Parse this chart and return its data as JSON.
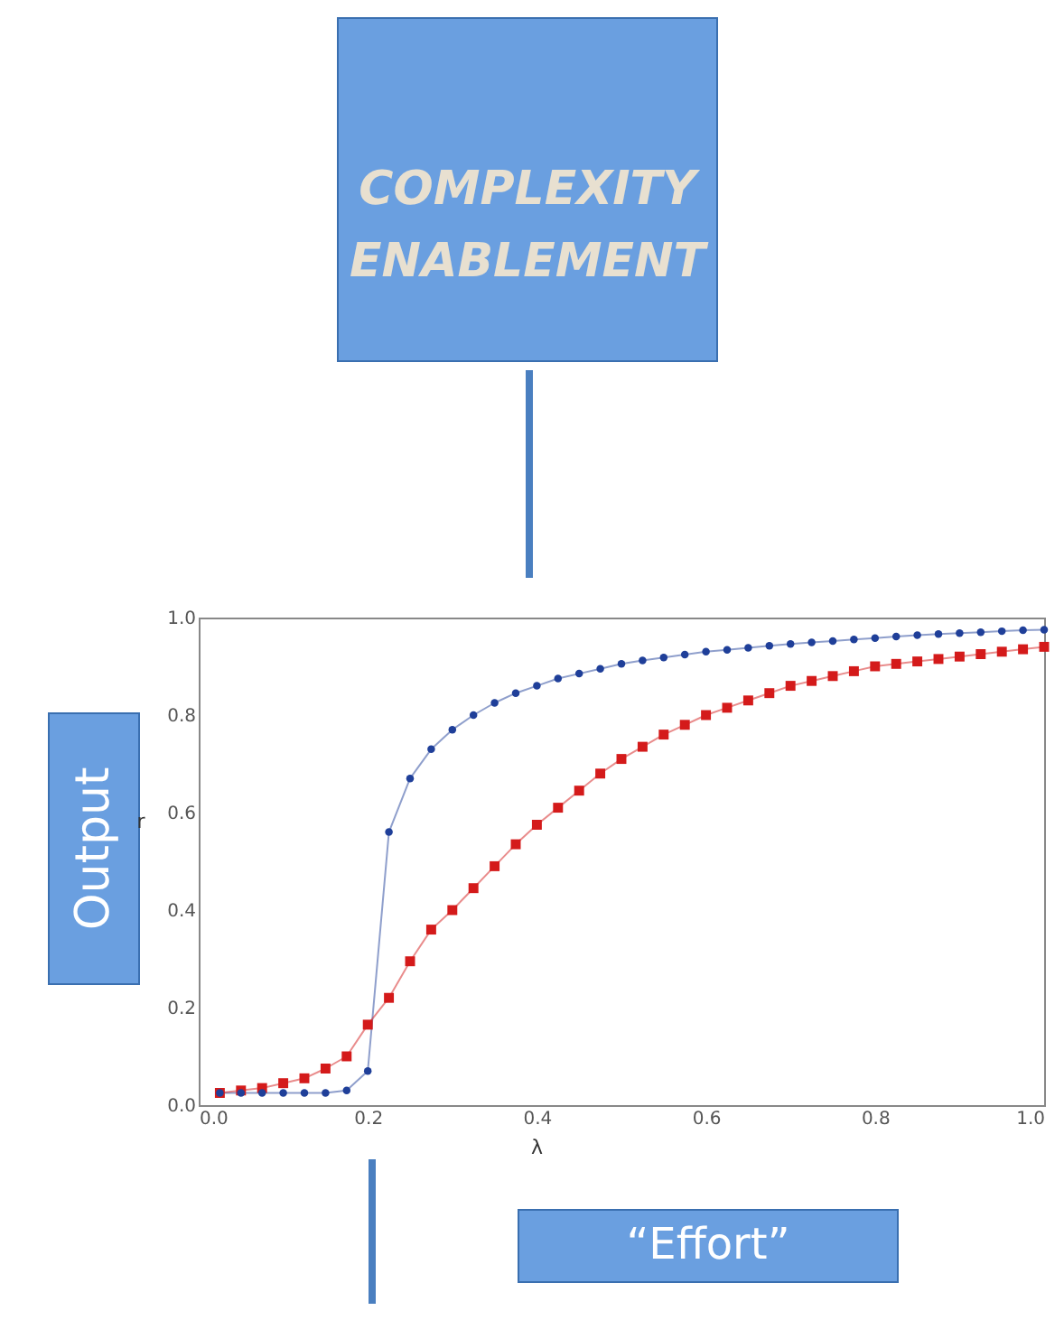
{
  "chart_data": {
    "type": "line",
    "xlabel": "λ",
    "ylabel": "r",
    "annotations": [
      "COMPLEXITY\nENABLEMENT",
      "Output",
      "“Effort”"
    ],
    "x": [
      0.025,
      0.05,
      0.075,
      0.1,
      0.125,
      0.15,
      0.175,
      0.2,
      0.225,
      0.25,
      0.275,
      0.3,
      0.325,
      0.35,
      0.375,
      0.4,
      0.425,
      0.45,
      0.475,
      0.5,
      0.525,
      0.55,
      0.575,
      0.6,
      0.625,
      0.65,
      0.675,
      0.7,
      0.725,
      0.75,
      0.775,
      0.8,
      0.825,
      0.85,
      0.875,
      0.9,
      0.925,
      0.95,
      0.975,
      1.0
    ],
    "series": [
      {
        "color": "#1f3f99",
        "marker": "circle",
        "values": [
          0.025,
          0.025,
          0.025,
          0.025,
          0.025,
          0.025,
          0.03,
          0.07,
          0.56,
          0.67,
          0.73,
          0.77,
          0.8,
          0.825,
          0.845,
          0.86,
          0.875,
          0.885,
          0.895,
          0.905,
          0.912,
          0.918,
          0.924,
          0.93,
          0.934,
          0.938,
          0.942,
          0.946,
          0.949,
          0.952,
          0.955,
          0.958,
          0.961,
          0.964,
          0.966,
          0.968,
          0.97,
          0.972,
          0.974,
          0.975
        ]
      },
      {
        "color": "#d41a1a",
        "marker": "square",
        "values": [
          0.025,
          0.03,
          0.035,
          0.045,
          0.055,
          0.075,
          0.1,
          0.165,
          0.22,
          0.295,
          0.36,
          0.4,
          0.445,
          0.49,
          0.535,
          0.575,
          0.61,
          0.645,
          0.68,
          0.71,
          0.735,
          0.76,
          0.78,
          0.8,
          0.815,
          0.83,
          0.845,
          0.86,
          0.87,
          0.88,
          0.89,
          0.9,
          0.905,
          0.91,
          0.915,
          0.92,
          0.925,
          0.93,
          0.935,
          0.94
        ]
      }
    ],
    "xlim": [
      0,
      1
    ],
    "ylim": [
      0,
      1
    ],
    "xticks": [
      {
        "value": 0,
        "label": "0.0"
      },
      0.2,
      0.4,
      0.6,
      0.8,
      {
        "value": 1,
        "label": "1.0"
      }
    ],
    "yticks": [
      {
        "value": 0,
        "label": "0.0"
      },
      0.2,
      0.4,
      0.6,
      0.8,
      {
        "value": 1,
        "label": "1.0"
      }
    ],
    "grid": false,
    "line_style": "solid"
  }
}
